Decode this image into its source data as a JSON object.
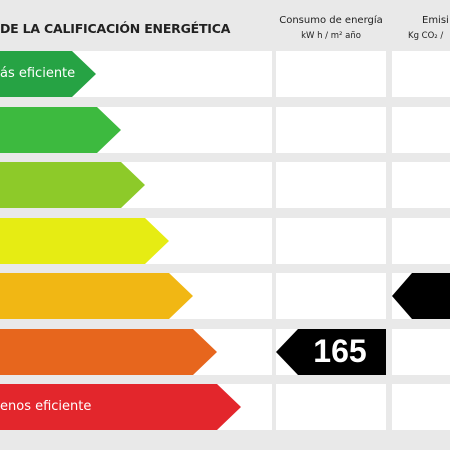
{
  "header": {
    "title": "DE LA CALIFICACIÓN ENERGÉTICA",
    "energy_col_line1": "Consumo de energía",
    "energy_col_line2": "kW h / m² año",
    "emis_col_line1": "Emisi",
    "emis_col_line2": "Kg CO₂ /"
  },
  "bars": [
    {
      "label": "ás eficiente",
      "color": "#26a344"
    },
    {
      "label": "",
      "color": "#3dba3f"
    },
    {
      "label": "",
      "color": "#8dca29"
    },
    {
      "label": "",
      "color": "#e6ec13"
    },
    {
      "label": "",
      "color": "#f1b714"
    },
    {
      "label": "",
      "color": "#e7661d"
    },
    {
      "label": "enos eficiente",
      "color": "#e3262c"
    }
  ],
  "energy_indicator": {
    "value": "165",
    "row": 5
  },
  "emissions_indicator": {
    "row": 4
  }
}
